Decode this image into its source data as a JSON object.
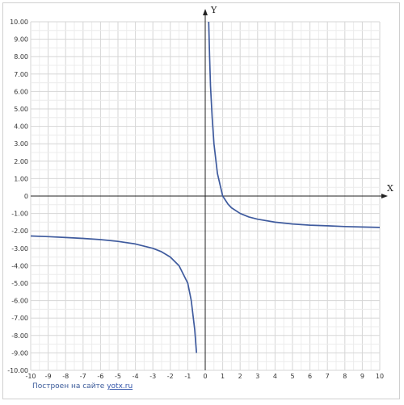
{
  "chart_data": {
    "type": "line",
    "title": "",
    "xlabel": "X",
    "ylabel": "Y",
    "xlim": [
      -10,
      10
    ],
    "ylim": [
      -10,
      10
    ],
    "grid": true,
    "x_ticks": [
      "-10",
      "-9",
      "-8",
      "-7",
      "-6",
      "-5",
      "-4",
      "-3",
      "-2",
      "-1",
      "0",
      "1",
      "2",
      "3",
      "4",
      "5",
      "6",
      "7",
      "8",
      "9",
      "10"
    ],
    "y_ticks": [
      "10.00",
      "9.00",
      "8.00",
      "7.00",
      "6.00",
      "5.00",
      "4.00",
      "3.00",
      "2.00",
      "1.00",
      "0",
      "-1.00",
      "-2.00",
      "-3.00",
      "-4.00",
      "-5.00",
      "-6.00",
      "-7.00",
      "-8.00",
      "-9.00",
      "-10.00"
    ],
    "series": [
      {
        "color": "#3f5b9e",
        "branches": [
          {
            "x": [
              -10,
              -9,
              -8,
              -7,
              -6,
              -5,
              -4,
              -3,
              -2.5,
              -2,
              -1.5,
              -1,
              -0.8,
              -0.6,
              -0.5
            ],
            "y": [
              -2.29,
              -2.33,
              -2.38,
              -2.43,
              -2.5,
              -2.6,
              -2.75,
              -3.0,
              -3.2,
              -3.5,
              -4.0,
              -5.0,
              -6.0,
              -7.67,
              -9.0
            ]
          },
          {
            "x": [
              0.2,
              0.25,
              0.3,
              0.4,
              0.5,
              0.7,
              1,
              1.3,
              1.5,
              2,
              2.5,
              3,
              4,
              5,
              6,
              7,
              8,
              9,
              10
            ],
            "y": [
              10,
              8.0,
              6.33,
              4.5,
              3.0,
              1.29,
              0.0,
              -0.46,
              -0.67,
              -1.0,
              -1.2,
              -1.33,
              -1.5,
              -1.6,
              -1.67,
              -1.71,
              -1.75,
              -1.78,
              -1.8
            ]
          }
        ]
      }
    ]
  },
  "credit": {
    "prefix": "Построен на сайте",
    "link": "yotx.ru"
  }
}
